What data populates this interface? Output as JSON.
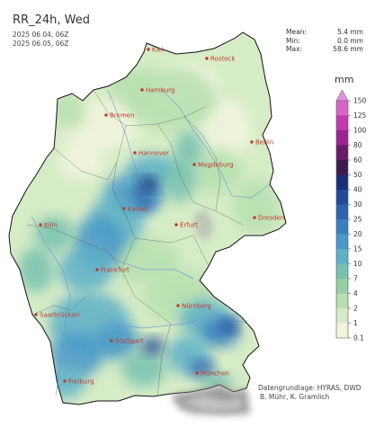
{
  "header": {
    "title": "RR_24h, Wed",
    "date_start": "2025 06 04, 06Z",
    "date_end": "2025 06 05, 06Z"
  },
  "stats": [
    {
      "label": "Mean:",
      "value": "5.4 mm"
    },
    {
      "label": "Min:",
      "value": "0.0 mm"
    },
    {
      "label": "Max:",
      "value": "58.6 mm"
    }
  ],
  "colorbar": {
    "unit": "mm",
    "ticks": [
      "0.1",
      "1",
      "2",
      "4",
      "7",
      "10",
      "15",
      "20",
      "25",
      "30",
      "40",
      "50",
      "60",
      "80",
      "100",
      "125",
      "150"
    ],
    "colors": [
      "#f2f5de",
      "#d6ecc6",
      "#b6dfb0",
      "#95cfa6",
      "#77c1b0",
      "#5db0c8",
      "#4a99c8",
      "#3a7fbe",
      "#2d63ad",
      "#24489a",
      "#1a2e78",
      "#3d1a4e",
      "#6a1a6a",
      "#9a2490",
      "#c23aae",
      "#d864c8"
    ]
  },
  "cities": [
    {
      "name": "Kiel"
    },
    {
      "name": "Rostock"
    },
    {
      "name": "Hamburg"
    },
    {
      "name": "Bremen"
    },
    {
      "name": "Berlin"
    },
    {
      "name": "Hannover"
    },
    {
      "name": "Magdeburg"
    },
    {
      "name": "Kassel"
    },
    {
      "name": "Erfurt"
    },
    {
      "name": "Dresden"
    },
    {
      "name": "Köln"
    },
    {
      "name": "Frankfurt"
    },
    {
      "name": "Nürnberg"
    },
    {
      "name": "Saarbrücken"
    },
    {
      "name": "Stuttgart"
    },
    {
      "name": "München"
    },
    {
      "name": "Freiburg"
    }
  ],
  "credit": {
    "line1": "Datengrundlage: HYRAS, DWD",
    "line2": "B. Mühr, K. Gramlich"
  }
}
